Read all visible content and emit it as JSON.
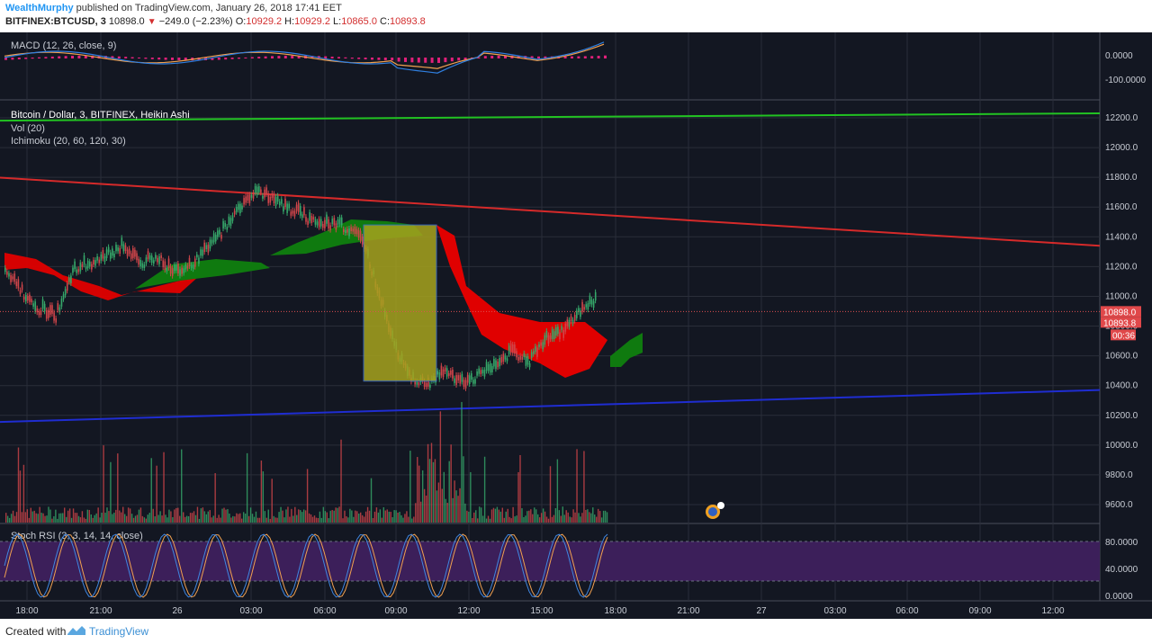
{
  "header": {
    "author": "WealthMurphy",
    "published_text": "published on TradingView.com, January 26, 2018 17:41 EET",
    "symbol": "BITFINEX:BTCUSD, 3",
    "price": "10898.0",
    "change": "−249.0 (−2.23%)",
    "o_label": "O:",
    "o_value": "10929.2",
    "h_label": "H:",
    "h_value": "10929.2",
    "l_label": "L:",
    "l_value": "10865.0",
    "c_label": "C:",
    "c_value": "10893.8"
  },
  "footer": {
    "created_with": "Created with",
    "brand": "TradingView"
  },
  "colors": {
    "background": "#131722",
    "grid": "#2a2e39",
    "green_line": "#22c322",
    "red_line": "#d62a2a",
    "blue_line": "#1f2dd1",
    "cloud_red": "#e00000",
    "cloud_green": "#0f7a0f",
    "macd_blue": "#2f7fe0",
    "macd_orange": "#f0a050",
    "macd_hist": "#e0207a",
    "rsi_band": "#3c1f5a",
    "box_fill": "#a6a31e",
    "candle_up": "#36a86a",
    "candle_down": "#d0454a"
  },
  "chart_data": {
    "type": "candlestick",
    "title": "Bitcoin / Dollar, 3, BITFINEX, Heikin Ashi",
    "indicators": [
      "Vol (20)",
      "Ichimoku (20, 60, 120, 30)"
    ],
    "macd": {
      "label": "MACD (12, 26, close, 9)",
      "ticks": [
        "0.0000",
        "-100.0000"
      ]
    },
    "stoch_rsi": {
      "label": "Stoch RSI (3, 3, 14, 14, close)",
      "ticks": [
        "80.0000",
        "40.0000",
        "0.0000"
      ]
    },
    "price_axis_ticks": [
      12200,
      12000,
      11800,
      11600,
      11400,
      11200,
      11000,
      10800,
      10600,
      10400,
      10200,
      10000,
      9800,
      9600
    ],
    "price_labels": {
      "last": "10898.0",
      "close": "10893.8",
      "countdown": "00:36"
    },
    "time_ticks": [
      "18:00",
      "21:00",
      "26",
      "03:00",
      "06:00",
      "09:00",
      "12:00",
      "15:00",
      "18:00",
      "21:00",
      "27",
      "03:00",
      "06:00",
      "09:00",
      "12:00"
    ],
    "price_path": [
      [
        0,
        11150
      ],
      [
        1,
        11020
      ],
      [
        2,
        10900
      ],
      [
        3,
        10850
      ],
      [
        4,
        11150
      ],
      [
        5,
        11200
      ],
      [
        6,
        11260
      ],
      [
        7,
        11320
      ],
      [
        8,
        11200
      ],
      [
        9,
        11250
      ],
      [
        10,
        11150
      ],
      [
        11,
        11200
      ],
      [
        12,
        11300
      ],
      [
        13,
        11450
      ],
      [
        14,
        11600
      ],
      [
        15,
        11700
      ],
      [
        16,
        11620
      ],
      [
        17,
        11560
      ],
      [
        18,
        11500
      ],
      [
        19,
        11480
      ],
      [
        20,
        11450
      ],
      [
        21,
        11400
      ],
      [
        22,
        11050
      ],
      [
        23,
        10650
      ],
      [
        24,
        10450
      ],
      [
        25,
        10380
      ],
      [
        26,
        10500
      ],
      [
        27,
        10400
      ],
      [
        28,
        10450
      ],
      [
        29,
        10520
      ],
      [
        30,
        10600
      ],
      [
        31,
        10550
      ],
      [
        32,
        10700
      ],
      [
        33,
        10750
      ],
      [
        34,
        10880
      ],
      [
        35,
        10950
      ]
    ],
    "trendlines": [
      {
        "name": "upper-green",
        "from": [
          -2,
          12180
        ],
        "to": [
          80,
          12230
        ]
      },
      {
        "name": "red-resistance",
        "from": [
          -2,
          11810
        ],
        "to": [
          80,
          11340
        ]
      },
      {
        "name": "blue-support",
        "from": [
          -2,
          10150
        ],
        "to": [
          80,
          10370
        ]
      }
    ],
    "highlight_box": {
      "from": [
        20,
        11480
      ],
      "to": [
        24,
        10430
      ]
    }
  }
}
